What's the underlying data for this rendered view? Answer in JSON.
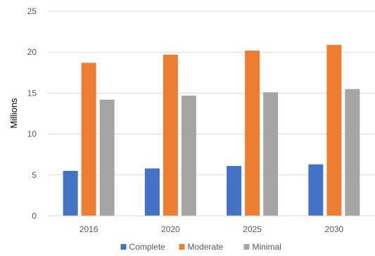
{
  "chart_data": {
    "type": "bar",
    "title": "",
    "xlabel": "",
    "ylabel": "Millions",
    "categories": [
      "2016",
      "2020",
      "2025",
      "2030"
    ],
    "series": [
      {
        "name": "Complete",
        "color": "#4472C4",
        "values": [
          5.5,
          5.8,
          6.1,
          6.3
        ]
      },
      {
        "name": "Moderate",
        "color": "#ED7D31",
        "values": [
          18.7,
          19.7,
          20.2,
          20.9
        ]
      },
      {
        "name": "Minimal",
        "color": "#A5A5A5",
        "values": [
          14.2,
          14.7,
          15.1,
          15.5
        ]
      }
    ],
    "ylim": [
      0,
      25
    ],
    "yticks": [
      "0",
      "5",
      "10",
      "15",
      "20",
      "25"
    ],
    "grid": true,
    "gridline_color": "#D9D9D9",
    "legend_position": "bottom"
  }
}
